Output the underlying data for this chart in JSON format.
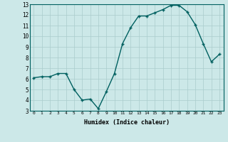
{
  "x": [
    0,
    1,
    2,
    3,
    4,
    5,
    6,
    7,
    8,
    9,
    10,
    11,
    12,
    13,
    14,
    15,
    16,
    17,
    18,
    19,
    20,
    21,
    22,
    23
  ],
  "y": [
    6.1,
    6.2,
    6.2,
    6.5,
    6.5,
    5.0,
    4.0,
    4.1,
    3.2,
    4.8,
    6.5,
    9.3,
    10.8,
    11.9,
    11.9,
    12.2,
    12.5,
    12.9,
    12.9,
    12.3,
    11.1,
    9.3,
    7.6,
    8.3
  ],
  "xlabel": "Humidex (Indice chaleur)",
  "xlim": [
    -0.5,
    23.5
  ],
  "ylim": [
    3,
    13
  ],
  "yticks": [
    3,
    4,
    5,
    6,
    7,
    8,
    9,
    10,
    11,
    12,
    13
  ],
  "xticks": [
    0,
    1,
    2,
    3,
    4,
    5,
    6,
    7,
    8,
    9,
    10,
    11,
    12,
    13,
    14,
    15,
    16,
    17,
    18,
    19,
    20,
    21,
    22,
    23
  ],
  "line_color": "#006060",
  "marker_color": "#006060",
  "bg_color": "#cce8e8",
  "grid_color": "#aacccc",
  "font_color": "#000000"
}
